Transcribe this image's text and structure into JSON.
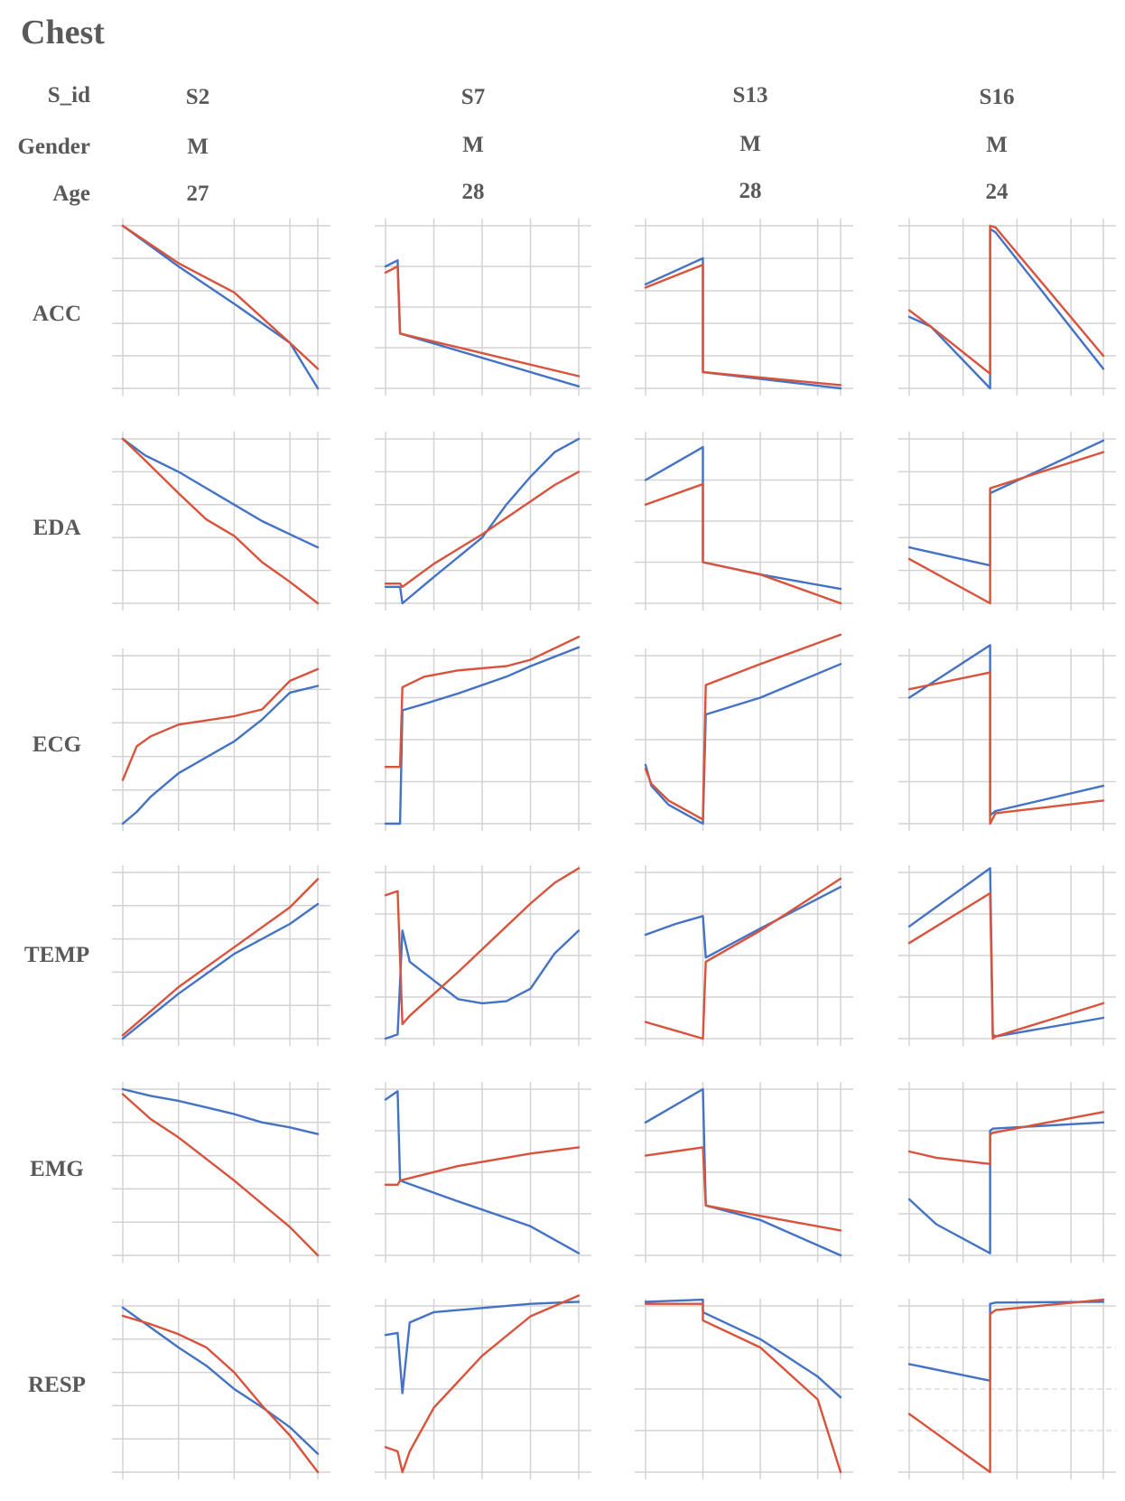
{
  "title": "Chest",
  "header_labels": {
    "subject": "S_id",
    "gender": "Gender",
    "age": "Age"
  },
  "subjects": [
    {
      "id": "S2",
      "gender": "M",
      "age": "27"
    },
    {
      "id": "S7",
      "gender": "M",
      "age": "28"
    },
    {
      "id": "S13",
      "gender": "M",
      "age": "28"
    },
    {
      "id": "S16",
      "gender": "M",
      "age": "24"
    }
  ],
  "rows": [
    "ACC",
    "EDA",
    "ECG",
    "TEMP",
    "EMG",
    "RESP"
  ],
  "colors": {
    "series_blue": "#4472c4",
    "series_red": "#d9533c",
    "grid": "#d3d3d3",
    "text": "#595959"
  },
  "chart_data": {
    "type": "line",
    "layout": "grid 6 rows x 4 columns of small multiples",
    "axes": "no tick labels, no axis titles, light grey gridlines",
    "series": [
      {
        "color": "#4472c4"
      },
      {
        "color": "#d9533c"
      }
    ],
    "panels": [
      {
        "row": "ACC",
        "subject": "S2",
        "v": 5,
        "x": [
          0,
          1,
          2,
          3,
          3.5
        ],
        "blue": [
          5.0,
          3.75,
          2.6,
          1.4,
          0.0
        ],
        "red": [
          5.0,
          3.85,
          2.95,
          1.4,
          0.6
        ]
      },
      {
        "row": "ACC",
        "subject": "S7",
        "v": 4,
        "x": [
          0,
          0.25,
          0.3,
          4
        ],
        "blue": [
          3.0,
          3.15,
          1.35,
          0.05
        ],
        "red": [
          2.85,
          3.0,
          1.35,
          0.3
        ]
      },
      {
        "row": "ACC",
        "subject": "S13",
        "v": 5,
        "x": [
          0,
          1,
          1.0,
          3.4
        ],
        "blue": [
          3.2,
          4.0,
          0.5,
          0.0
        ],
        "red": [
          3.1,
          3.8,
          0.5,
          0.1
        ]
      },
      {
        "row": "ACC",
        "subject": "S16",
        "v": 5,
        "x": [
          0,
          0.4,
          1.5,
          1.5,
          1.6,
          3.6
        ],
        "blue": [
          2.2,
          1.9,
          0.0,
          4.9,
          4.8,
          0.6
        ],
        "red": [
          2.4,
          1.9,
          0.45,
          5.0,
          4.95,
          1.0
        ]
      },
      {
        "row": "EDA",
        "subject": "S2",
        "v": 5,
        "x": [
          0,
          0.4,
          1.0,
          1.5,
          2.0,
          2.5,
          3.0,
          3.5
        ],
        "blue": [
          5.0,
          4.5,
          4.0,
          3.5,
          3.0,
          2.5,
          2.1,
          1.7
        ],
        "red": [
          5.0,
          4.35,
          3.35,
          2.55,
          2.05,
          1.25,
          0.65,
          0.0
        ]
      },
      {
        "row": "EDA",
        "subject": "S7",
        "v": 5,
        "x": [
          0,
          0.3,
          0.35,
          1,
          2,
          2.5,
          3,
          3.5,
          4
        ],
        "blue": [
          0.5,
          0.5,
          0.0,
          0.8,
          2.0,
          3.0,
          3.85,
          4.6,
          5.0
        ],
        "red": [
          0.6,
          0.6,
          0.5,
          1.2,
          2.1,
          2.6,
          3.1,
          3.6,
          4.0
        ]
      },
      {
        "row": "EDA",
        "subject": "S13",
        "v": 4,
        "x": [
          0,
          0.5,
          1.0,
          1.0,
          2.0,
          3.4
        ],
        "blue": [
          3.0,
          3.4,
          3.8,
          1.0,
          0.7,
          0.35
        ],
        "red": [
          2.4,
          2.65,
          2.9,
          1.0,
          0.7,
          0.0
        ]
      },
      {
        "row": "EDA",
        "subject": "S16",
        "v": 5,
        "x": [
          0,
          1.5,
          1.5,
          3.6
        ],
        "blue": [
          1.7,
          1.15,
          3.35,
          4.95
        ],
        "red": [
          1.35,
          0.0,
          3.5,
          4.6
        ]
      },
      {
        "row": "ECG",
        "subject": "S2",
        "v": 5,
        "x": [
          0,
          0.25,
          0.5,
          1,
          2,
          2.5,
          3,
          3.5
        ],
        "blue": [
          0.0,
          0.35,
          0.8,
          1.5,
          2.45,
          3.1,
          3.9,
          4.1
        ],
        "red": [
          1.3,
          2.3,
          2.6,
          2.95,
          3.2,
          3.4,
          4.25,
          4.6
        ]
      },
      {
        "row": "ECG",
        "subject": "S7",
        "v": 4,
        "x": [
          0,
          0.3,
          0.35,
          0.8,
          1.5,
          2.5,
          3,
          4
        ],
        "blue": [
          0.0,
          0.0,
          2.7,
          2.85,
          3.1,
          3.5,
          3.75,
          4.2
        ],
        "red": [
          1.35,
          1.35,
          3.25,
          3.5,
          3.65,
          3.75,
          3.9,
          4.45
        ]
      },
      {
        "row": "ECG",
        "subject": "S13",
        "v": 4,
        "x": [
          0,
          0.1,
          0.4,
          1.0,
          1.05,
          2.0,
          3.4
        ],
        "blue": [
          1.4,
          0.9,
          0.45,
          0.0,
          2.6,
          3.0,
          3.8
        ],
        "red": [
          1.3,
          0.95,
          0.55,
          0.1,
          3.3,
          3.8,
          4.5
        ]
      },
      {
        "row": "ECG",
        "subject": "S16",
        "v": 4,
        "x": [
          0,
          1.5,
          1.5,
          1.6,
          3.6
        ],
        "blue": [
          3.0,
          4.25,
          0.2,
          0.3,
          0.9
        ],
        "red": [
          3.2,
          3.6,
          0.0,
          0.25,
          0.55
        ]
      },
      {
        "row": "TEMP",
        "subject": "S2",
        "v": 5,
        "x": [
          0,
          1,
          2,
          3,
          3.5
        ],
        "blue": [
          0.0,
          1.35,
          2.55,
          3.45,
          4.05
        ],
        "red": [
          0.1,
          1.55,
          2.75,
          3.95,
          4.8
        ]
      },
      {
        "row": "TEMP",
        "subject": "S7",
        "v": 4,
        "x": [
          0,
          0.25,
          0.35,
          0.5,
          1.5,
          2,
          2.5,
          3,
          3.5,
          4
        ],
        "blue": [
          0.0,
          0.1,
          2.6,
          1.85,
          0.95,
          0.85,
          0.9,
          1.2,
          2.05,
          2.6
        ],
        "red": [
          3.45,
          3.55,
          0.35,
          0.55,
          1.6,
          2.15,
          2.7,
          3.25,
          3.75,
          4.1
        ]
      },
      {
        "row": "TEMP",
        "subject": "S13",
        "v": 4,
        "x": [
          0,
          0.5,
          1.0,
          1.05,
          2.0,
          3.4
        ],
        "blue": [
          2.5,
          2.75,
          2.95,
          1.95,
          2.65,
          3.65
        ],
        "red": [
          0.4,
          0.2,
          0.0,
          1.85,
          2.6,
          3.85
        ]
      },
      {
        "row": "TEMP",
        "subject": "S16",
        "v": 4,
        "x": [
          0,
          1.5,
          1.55,
          1.6,
          3.6
        ],
        "blue": [
          2.7,
          4.1,
          0.1,
          0.05,
          0.5
        ],
        "red": [
          2.3,
          3.5,
          0.0,
          0.05,
          0.85
        ]
      },
      {
        "row": "EMG",
        "subject": "S2",
        "v": 5,
        "x": [
          0,
          0.5,
          1.0,
          1.5,
          2.0,
          2.5,
          3.0,
          3.5
        ],
        "blue": [
          5.0,
          4.8,
          4.65,
          4.45,
          4.25,
          4.0,
          3.85,
          3.65
        ],
        "red": [
          4.85,
          4.1,
          3.55,
          2.9,
          2.25,
          1.55,
          0.85,
          0.0
        ]
      },
      {
        "row": "EMG",
        "subject": "S7",
        "v": 4,
        "x": [
          0,
          0.25,
          0.3,
          1.5,
          3,
          4
        ],
        "blue": [
          3.75,
          3.95,
          1.8,
          1.3,
          0.7,
          0.05
        ],
        "red": [
          1.7,
          1.7,
          1.8,
          2.15,
          2.45,
          2.6
        ]
      },
      {
        "row": "EMG",
        "subject": "S13",
        "v": 4,
        "x": [
          0,
          1.0,
          1.05,
          2.0,
          3.4
        ],
        "blue": [
          3.2,
          4.0,
          1.2,
          0.85,
          0.0
        ],
        "red": [
          2.4,
          2.6,
          1.2,
          0.95,
          0.6
        ]
      },
      {
        "row": "EMG",
        "subject": "S16",
        "v": 4,
        "x": [
          0,
          0.5,
          1.5,
          1.5,
          1.55,
          3.6
        ],
        "blue": [
          1.35,
          0.75,
          0.05,
          3.0,
          3.05,
          3.2
        ],
        "red": [
          2.5,
          2.35,
          2.2,
          2.9,
          2.95,
          3.45
        ]
      },
      {
        "row": "RESP",
        "subject": "S2",
        "v": 5,
        "x": [
          0,
          0.5,
          1.0,
          1.5,
          2.0,
          2.5,
          3.0,
          3.5
        ],
        "blue": [
          4.95,
          4.35,
          3.75,
          3.2,
          2.5,
          1.95,
          1.35,
          0.55
        ],
        "red": [
          4.7,
          4.45,
          4.15,
          3.75,
          3.0,
          2.0,
          1.1,
          0.0
        ]
      },
      {
        "row": "RESP",
        "subject": "S7",
        "v": 4,
        "x": [
          0,
          0.25,
          0.35,
          0.5,
          1,
          2,
          3,
          4
        ],
        "blue": [
          3.3,
          3.35,
          1.9,
          3.6,
          3.85,
          3.95,
          4.05,
          4.1
        ],
        "red": [
          0.6,
          0.5,
          0.0,
          0.5,
          1.55,
          2.8,
          3.75,
          4.25
        ]
      },
      {
        "row": "RESP",
        "subject": "S13",
        "v": 4,
        "x": [
          0,
          1.0,
          1.0,
          2.0,
          3.0,
          3.4
        ],
        "blue": [
          4.1,
          4.15,
          3.85,
          3.2,
          2.3,
          1.8
        ],
        "red": [
          4.05,
          4.05,
          3.65,
          3.0,
          1.75,
          0.0
        ]
      },
      {
        "row": "RESP",
        "subject": "S16",
        "v": 4,
        "x": [
          0,
          1.5,
          1.5,
          1.6,
          3.6
        ],
        "blue": [
          2.6,
          2.2,
          4.05,
          4.08,
          4.1
        ],
        "red": [
          1.4,
          0.0,
          3.8,
          3.9,
          4.15
        ]
      }
    ]
  }
}
